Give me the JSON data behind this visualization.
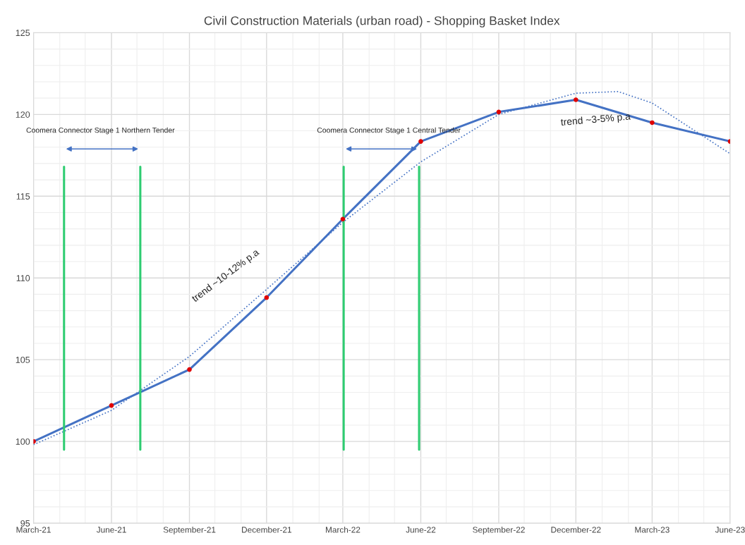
{
  "chart_data": {
    "type": "line",
    "title": "Civil Construction Materials (urban road) - Shopping Basket Index",
    "x": [
      "2021-03",
      "2021-06",
      "2021-09",
      "2021-12",
      "2022-03",
      "2022-06",
      "2022-09",
      "2022-12",
      "2023-03",
      "2023-06"
    ],
    "series": [
      {
        "type": "line",
        "color": "#4472c4",
        "values": [
          100.0,
          102.2,
          104.4,
          108.8,
          113.6,
          118.35,
          120.15,
          120.9,
          119.5,
          118.35
        ],
        "marker": "none",
        "line_style": "solid"
      },
      {
        "type": "scatter",
        "color": "#e00000",
        "values": [
          100.0,
          102.2,
          104.4,
          108.8,
          113.6,
          118.35,
          120.15,
          120.9,
          119.5,
          118.35
        ],
        "marker": "circle"
      },
      {
        "type": "line",
        "color": "#4472c4",
        "x": [
          "2021-03",
          "2021-06",
          "2021-09",
          "2021-12",
          "2022-03",
          "2022-06",
          "2022-09",
          "2022-12",
          "2023-01-20",
          "2023-03",
          "2023-06"
        ],
        "values": [
          99.8,
          101.9,
          105.2,
          109.3,
          113.4,
          117.1,
          120.0,
          121.3,
          121.4,
          120.7,
          117.6
        ],
        "marker": "none",
        "line_style": "dotted"
      },
      {
        "type": "line",
        "color": "#2ecc71",
        "x": [
          "2021-04-06",
          "2021-04-06"
        ],
        "values": [
          99.5,
          116.8
        ],
        "marker": "none",
        "line_style": "solid"
      },
      {
        "type": "line",
        "color": "#2ecc71",
        "x": [
          "2021-07-05",
          "2021-07-05"
        ],
        "values": [
          99.5,
          116.8
        ],
        "marker": "none",
        "line_style": "solid"
      },
      {
        "type": "line",
        "color": "#2ecc71",
        "x": [
          "2022-03-02",
          "2022-03-02"
        ],
        "values": [
          99.5,
          116.8
        ],
        "marker": "none",
        "line_style": "solid"
      },
      {
        "type": "line",
        "color": "#2ecc71",
        "x": [
          "2022-05-30",
          "2022-05-30"
        ],
        "values": [
          99.5,
          116.8
        ],
        "marker": "none",
        "line_style": "solid"
      }
    ],
    "annotations": [
      "Coomera Connector Stage 1 Northern Tender",
      "Coomera Connector Stage 1 Central Tender",
      "trend ~10-12% p.a",
      "trend ~3-5% p.a"
    ],
    "xlim": [
      "2021-03",
      "2023-06"
    ],
    "xticks": [
      {
        "value": "2021-03",
        "label": "March-21"
      },
      {
        "value": "2021-06",
        "label": "June-21"
      },
      {
        "value": "2021-09",
        "label": "September-21"
      },
      {
        "value": "2021-12",
        "label": "December-21"
      },
      {
        "value": "2022-03",
        "label": "March-22"
      },
      {
        "value": "2022-06",
        "label": "June-22"
      },
      {
        "value": "2022-09",
        "label": "September-22"
      },
      {
        "value": "2022-12",
        "label": "December-22"
      },
      {
        "value": "2023-03",
        "label": "March-23"
      },
      {
        "value": "2023-06",
        "label": "June-23"
      }
    ],
    "ylim": [
      95,
      125
    ],
    "yticks": [
      95,
      100,
      105,
      110,
      115,
      120,
      125
    ],
    "grid": true,
    "legend": false
  }
}
